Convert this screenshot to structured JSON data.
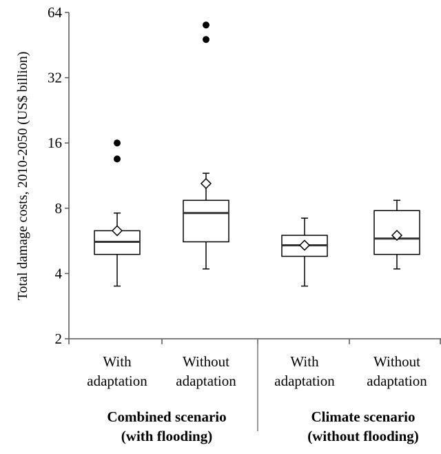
{
  "chart_data": {
    "type": "box",
    "title": "",
    "ylabel": "Total damage costs, 2010-2050 (US$ billion)",
    "xlabel": "",
    "yscale": "log2",
    "ylim": [
      2,
      64
    ],
    "yticks": [
      2,
      4,
      8,
      16,
      32,
      64
    ],
    "ytick_labels": [
      "2",
      "4",
      "8",
      "16",
      "32",
      "64"
    ],
    "grid": false,
    "groups": [
      {
        "label_line1": "Combined scenario",
        "label_line2": "(with flooding)"
      },
      {
        "label_line1": "Climate scenario",
        "label_line2": "(without flooding)"
      }
    ],
    "boxes": [
      {
        "group": 0,
        "label_line1": "With",
        "label_line2": "adaptation",
        "whisker_low": 3.5,
        "q1": 4.9,
        "median": 5.6,
        "q3": 6.3,
        "whisker_high": 7.6,
        "mean": 6.3,
        "outliers": [
          13.5,
          16.0
        ]
      },
      {
        "group": 0,
        "label_line1": "Without",
        "label_line2": "adaptation",
        "whisker_low": 4.2,
        "q1": 5.6,
        "median": 7.6,
        "q3": 8.7,
        "whisker_high": 11.6,
        "mean": 10.4,
        "outliers": [
          48.0,
          56.0
        ]
      },
      {
        "group": 1,
        "label_line1": "With",
        "label_line2": "adaptation",
        "whisker_low": 3.5,
        "q1": 4.8,
        "median": 5.4,
        "q3": 6.0,
        "whisker_high": 7.2,
        "mean": 5.4,
        "outliers": []
      },
      {
        "group": 1,
        "label_line1": "Without",
        "label_line2": "adaptation",
        "whisker_low": 4.2,
        "q1": 4.9,
        "median": 5.8,
        "q3": 7.8,
        "whisker_high": 8.7,
        "mean": 6.0,
        "outliers": []
      }
    ]
  }
}
